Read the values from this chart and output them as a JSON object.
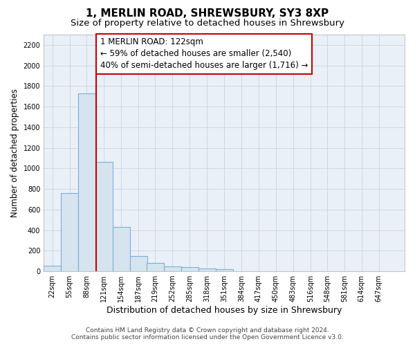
{
  "title": "1, MERLIN ROAD, SHREWSBURY, SY3 8XP",
  "subtitle": "Size of property relative to detached houses in Shrewsbury",
  "xlabel": "Distribution of detached houses by size in Shrewsbury",
  "ylabel": "Number of detached properties",
  "footer_line1": "Contains HM Land Registry data © Crown copyright and database right 2024.",
  "footer_line2": "Contains public sector information licensed under the Open Government Licence v3.0.",
  "bar_edges": [
    22,
    55,
    88,
    121,
    154,
    187,
    219,
    252,
    285,
    318,
    351,
    384,
    417,
    450,
    483,
    516,
    548,
    581,
    614,
    647,
    680
  ],
  "bar_heights": [
    55,
    760,
    1730,
    1060,
    430,
    150,
    80,
    45,
    40,
    30,
    20,
    0,
    0,
    0,
    0,
    0,
    0,
    0,
    0,
    0
  ],
  "bar_color": "#d6e4f0",
  "bar_edgecolor": "#7aafd4",
  "vline_x": 122,
  "vline_color": "#cc0000",
  "annotation_line1": "1 MERLIN ROAD: 122sqm",
  "annotation_line2": "← 59% of detached houses are smaller (2,540)",
  "annotation_line3": "40% of semi-detached houses are larger (1,716) →",
  "annotation_box_color": "#ffffff",
  "annotation_box_edgecolor": "#cc0000",
  "ylim": [
    0,
    2300
  ],
  "yticks": [
    0,
    200,
    400,
    600,
    800,
    1000,
    1200,
    1400,
    1600,
    1800,
    2000,
    2200
  ],
  "xlim": [
    22,
    680
  ],
  "bg_color": "#ffffff",
  "plot_bg_color": "#eaf0f8",
  "grid_color": "#c8d4e0",
  "title_fontsize": 11,
  "subtitle_fontsize": 9.5,
  "xlabel_fontsize": 9,
  "ylabel_fontsize": 8.5,
  "tick_fontsize": 7,
  "annotation_fontsize": 8.5,
  "footer_fontsize": 6.5
}
